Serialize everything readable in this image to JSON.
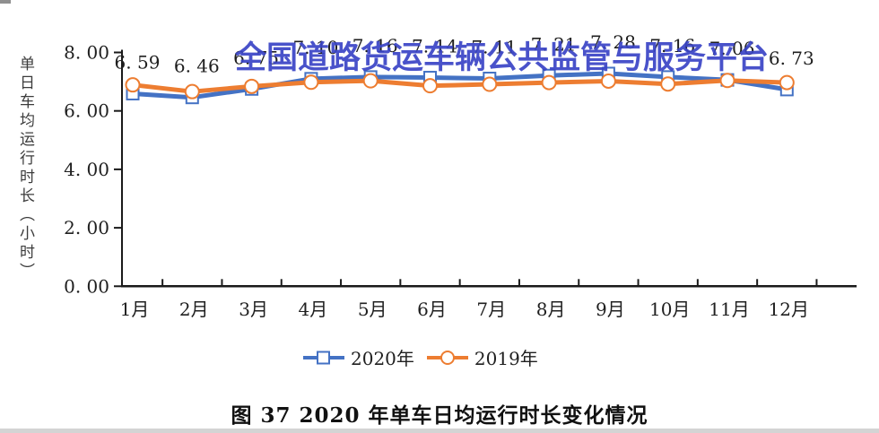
{
  "watermark": {
    "text": "全国道路货运车辆公共监管与服务平台",
    "color": "#3a44c6"
  },
  "caption": "图 37 2020 年单车日均运行时长变化情况",
  "chart_data": {
    "type": "line",
    "title": "",
    "xlabel": "",
    "ylabel": "单日车均运行时长（小时）",
    "ylim": [
      0,
      8
    ],
    "ytick_values": [
      8,
      6,
      4,
      2,
      0
    ],
    "ytick_labels": [
      "8. 00",
      "6. 00",
      "4. 00",
      "2. 00",
      "0. 00"
    ],
    "categories": [
      "1月",
      "2月",
      "3月",
      "4月",
      "5月",
      "6月",
      "7月",
      "8月",
      "9月",
      "10月",
      "11月",
      "12月"
    ],
    "grid": false,
    "legend_position": "bottom",
    "axis_color": "#1a1a1a",
    "marker_fill": "#ffffff",
    "series": [
      {
        "name": "2020年",
        "color": "#4472c4",
        "marker": "square",
        "values": [
          6.59,
          6.46,
          6.75,
          7.1,
          7.16,
          7.14,
          7.11,
          7.21,
          7.28,
          7.16,
          7.06,
          6.73
        ],
        "point_labels": [
          "6. 59",
          "6. 46",
          "6. 75",
          "7. 10",
          "7. 16",
          "7. 14",
          "7. 11",
          "7. 21",
          "7. 28",
          "7. 16",
          "7. 06",
          "6. 73"
        ]
      },
      {
        "name": "2019年",
        "color": "#ed7d31",
        "marker": "circle",
        "values": [
          6.89,
          6.66,
          6.84,
          6.98,
          7.03,
          6.86,
          6.91,
          6.97,
          7.02,
          6.92,
          7.04,
          6.97
        ],
        "point_labels": []
      }
    ]
  }
}
